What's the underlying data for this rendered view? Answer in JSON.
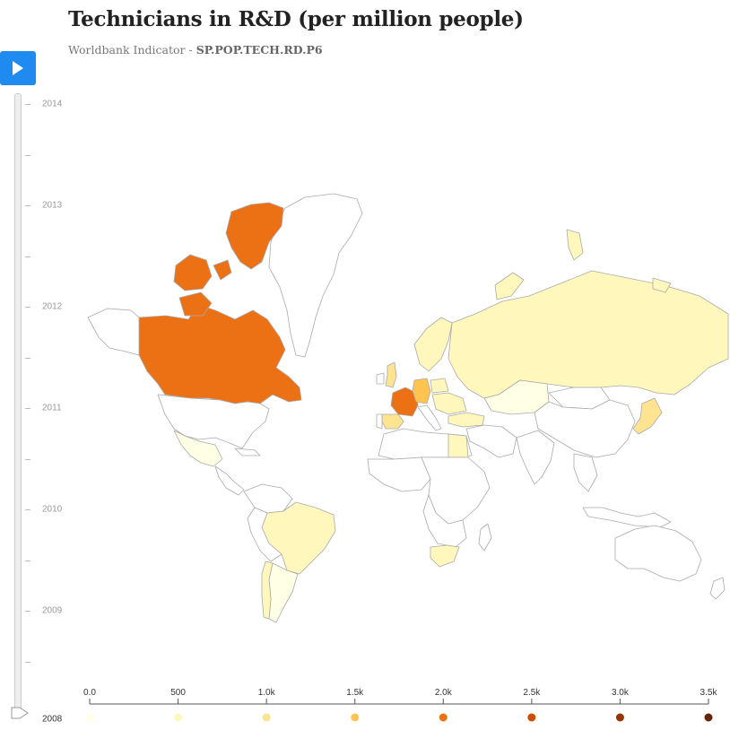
{
  "header": {
    "title": "Technicians in R&D (per million people)",
    "subtitle_prefix": "Worldbank Indicator - ",
    "indicator_code": "SP.POP.TECH.RD.P6"
  },
  "controls": {
    "play_icon": "play-icon",
    "accent": "#1f8bf0"
  },
  "timeline": {
    "selected_year": "2008",
    "years": [
      "2014",
      "2013",
      "2012",
      "2011",
      "2010",
      "2009",
      "2008"
    ]
  },
  "legend": {
    "labels": [
      "0.0",
      "500",
      "1.0k",
      "1.5k",
      "2.0k",
      "2.5k",
      "3.0k",
      "3.5k"
    ],
    "colors": [
      "#ffffe5",
      "#fff7bc",
      "#fee391",
      "#fec44f",
      "#ec7014",
      "#cc4c02",
      "#993404",
      "#662506"
    ]
  },
  "countries": {
    "canada": "#ec7014",
    "russia": "#fff7bc",
    "brazil": "#fff7bc",
    "france": "#ec7014",
    "germany": "#fec44f",
    "spain": "#fee391",
    "uk": "#fee391",
    "south_africa": "#fff7bc",
    "mexico": "#ffffe5",
    "argentina": "#ffffe5",
    "chile": "#fff7bc",
    "japan": "#fee391",
    "kazakhstan": "#ffffe5",
    "poland": "#fff7bc",
    "nordics": "#fff7bc",
    "egypt": "#fff7bc",
    "no_data": "#ffffff",
    "outline": "#aaaaaa"
  }
}
